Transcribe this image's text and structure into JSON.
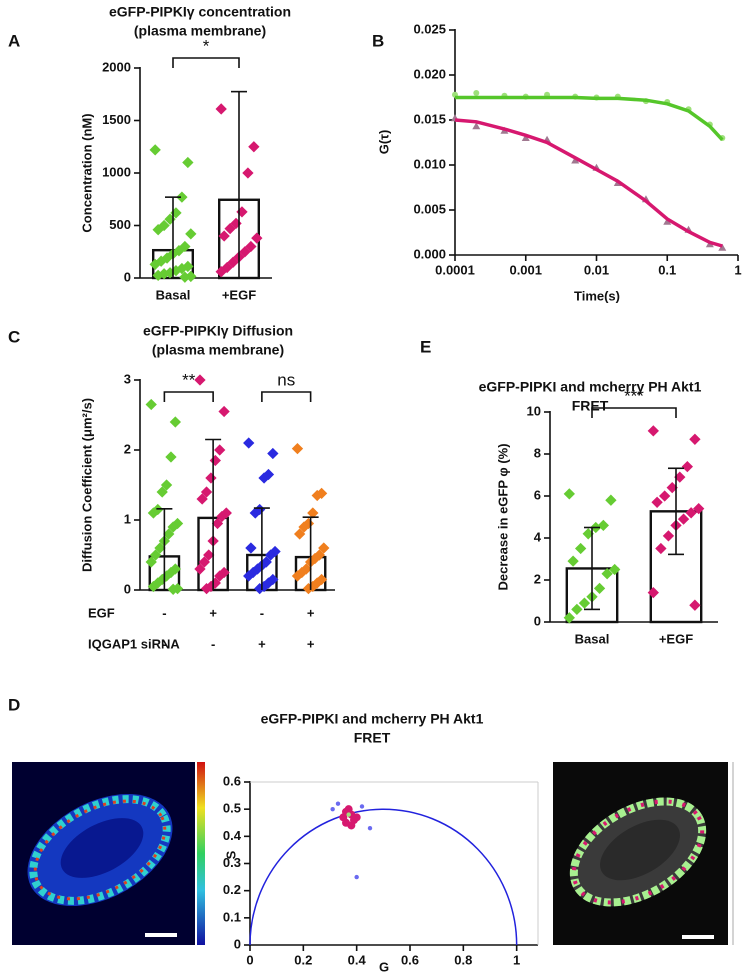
{
  "chart_data": [
    {
      "type": "bar",
      "panel": "A",
      "title": [
        "eGFP-PIPKIγ concentration",
        "(plasma membrane)"
      ],
      "ylabel": "Concentration (nM)",
      "categories": [
        "Basal",
        "+EGF"
      ],
      "values": [
        265,
        745
      ],
      "errors": [
        505,
        1030
      ],
      "colors": [
        "#66cc33",
        "#d6186f"
      ],
      "points": [
        [
          1220,
          1100,
          770,
          620,
          560,
          500,
          460,
          420,
          300,
          260,
          230,
          190,
          160,
          130,
          110,
          90,
          70,
          50,
          40,
          25,
          15,
          8
        ],
        [
          1610,
          1250,
          1000,
          630,
          520,
          470,
          400,
          380,
          300,
          250,
          200,
          150,
          100,
          60
        ]
      ],
      "significance": [
        "*"
      ],
      "ylim": [
        0,
        2000
      ],
      "yticks": [
        0,
        500,
        1000,
        1500,
        2000
      ]
    },
    {
      "type": "line",
      "panel": "B",
      "ylabel": "G(τ)",
      "xlabel": "Time(s)",
      "xlog": true,
      "x": [
        0.0001,
        0.0002,
        0.0005,
        0.001,
        0.002,
        0.005,
        0.01,
        0.02,
        0.05,
        0.1,
        0.2,
        0.4,
        0.6
      ],
      "series": [
        {
          "color": "#9ee07a",
          "style": "markers",
          "marker": "circle",
          "values": [
            0.0178,
            0.018,
            0.0177,
            0.0176,
            0.0178,
            0.0176,
            0.0175,
            0.0176,
            0.0171,
            0.017,
            0.0162,
            0.0145,
            0.013
          ]
        },
        {
          "color": "#a07890",
          "style": "markers",
          "marker": "triangle",
          "values": [
            0.0152,
            0.0143,
            0.0138,
            0.013,
            0.0128,
            0.0105,
            0.0097,
            0.008,
            0.0062,
            0.0037,
            0.0028,
            0.0012,
            0.0008
          ]
        },
        {
          "color": "#55c62a",
          "style": "line",
          "values": [
            0.0175,
            0.0175,
            0.0175,
            0.0175,
            0.0175,
            0.0175,
            0.0174,
            0.0174,
            0.0172,
            0.0168,
            0.016,
            0.0143,
            0.0128
          ]
        },
        {
          "color": "#d6186f",
          "style": "line",
          "values": [
            0.015,
            0.0148,
            0.014,
            0.0133,
            0.0125,
            0.0108,
            0.0095,
            0.0082,
            0.006,
            0.004,
            0.0026,
            0.0014,
            0.001
          ]
        }
      ],
      "xlim": [
        0.0001,
        1
      ],
      "xticks": [
        0.0001,
        0.001,
        0.01,
        0.1,
        1
      ],
      "ylim": [
        0,
        0.025
      ],
      "yticks": [
        {
          "value": 0,
          "label": "0.000"
        },
        0.005,
        {
          "value": 0.01,
          "label": "0.010"
        },
        0.015,
        {
          "value": 0.02,
          "label": "0.020"
        },
        0.025
      ]
    },
    {
      "type": "bar",
      "panel": "C",
      "title": [
        "eGFP-PIPKIγ Diffusion",
        "(plasma membrane)"
      ],
      "ylabel": "Diffusion Coefficient  (μm²/s)",
      "values": [
        0.48,
        1.03,
        0.5,
        0.47
      ],
      "errors": [
        0.68,
        1.12,
        0.67,
        0.57
      ],
      "colors": [
        "#66cc33",
        "#d6186f",
        "#2a2ae0",
        "#f07f1e"
      ],
      "points": [
        [
          2.65,
          2.4,
          1.9,
          1.5,
          1.4,
          1.15,
          1.1,
          0.95,
          0.9,
          0.8,
          0.7,
          0.6,
          0.5,
          0.4,
          0.3,
          0.25,
          0.2,
          0.15,
          0.1,
          0.05,
          0.02,
          0.01
        ],
        [
          3.0,
          2.55,
          2.0,
          1.85,
          1.6,
          1.4,
          1.3,
          1.1,
          1.05,
          0.95,
          0.7,
          0.5,
          0.4,
          0.3,
          0.25,
          0.2,
          0.1,
          0.05,
          0.02
        ],
        [
          2.1,
          1.95,
          1.65,
          1.6,
          1.15,
          1.1,
          0.6,
          0.55,
          0.5,
          0.4,
          0.35,
          0.3,
          0.25,
          0.2,
          0.15,
          0.1,
          0.05,
          0.02
        ],
        [
          2.02,
          1.38,
          1.35,
          1.1,
          0.95,
          0.9,
          0.8,
          0.6,
          0.5,
          0.45,
          0.4,
          0.3,
          0.25,
          0.2,
          0.15,
          0.1,
          0.05,
          0.02
        ]
      ],
      "rows": [
        {
          "label": "EGF",
          "values": [
            "-",
            "+",
            "-",
            "+"
          ]
        },
        {
          "label": "IQGAP1 siRNA",
          "values": [
            "-",
            "-",
            "+",
            "+"
          ]
        }
      ],
      "significance": [
        "**",
        "ns"
      ],
      "ylim": [
        0,
        3
      ],
      "yticks": [
        0,
        1,
        2,
        3
      ]
    },
    {
      "type": "bar",
      "panel": "E",
      "title": [
        "eGFP-PIPKI and mcherry PH Akt1",
        "FRET"
      ],
      "ylabel": "Decrease in eGFP φ (%)",
      "categories": [
        "Basal",
        "+EGF"
      ],
      "values": [
        2.55,
        5.27
      ],
      "errors": [
        1.95,
        2.05
      ],
      "colors": [
        "#66cc33",
        "#d6186f"
      ],
      "points": [
        [
          6.1,
          5.8,
          4.6,
          4.5,
          4.2,
          3.5,
          2.9,
          2.5,
          2.3,
          1.6,
          1.2,
          0.9,
          0.6,
          0.2
        ],
        [
          9.1,
          8.7,
          7.4,
          6.9,
          6.4,
          6.0,
          5.7,
          5.4,
          5.2,
          4.9,
          4.6,
          4.1,
          3.5,
          1.4,
          0.8
        ]
      ],
      "significance": [
        "***"
      ],
      "ylim": [
        0,
        10
      ],
      "yticks": [
        0,
        2,
        4,
        6,
        8,
        10
      ]
    },
    {
      "type": "scatter",
      "panel": "D",
      "title": [
        "eGFP-PIPKI and mcherry PH Akt1",
        "FRET"
      ],
      "xlabel": "G",
      "ylabel": "S",
      "semicircle": true,
      "series": [
        {
          "color": "#6a6af0",
          "x": [
            0.33,
            0.42,
            0.45,
            0.4,
            0.31
          ],
          "values": [
            0.52,
            0.51,
            0.43,
            0.25,
            0.5
          ]
        },
        {
          "color": "#d6186f",
          "x": [
            0.35,
            0.36,
            0.37,
            0.38,
            0.39,
            0.36,
            0.38,
            0.4
          ],
          "values": [
            0.47,
            0.49,
            0.5,
            0.48,
            0.46,
            0.45,
            0.44,
            0.47
          ]
        },
        {
          "color": "#9ee07a",
          "x": [
            0.37
          ],
          "values": [
            0.48
          ]
        }
      ],
      "xlim": [
        0,
        1.08
      ],
      "xticks": [
        0,
        0.2,
        0.4,
        0.6,
        0.8,
        1
      ],
      "ylim": [
        0,
        0.6
      ],
      "yticks": [
        0,
        0.1,
        0.2,
        0.3,
        0.4,
        0.5,
        0.6
      ]
    }
  ]
}
